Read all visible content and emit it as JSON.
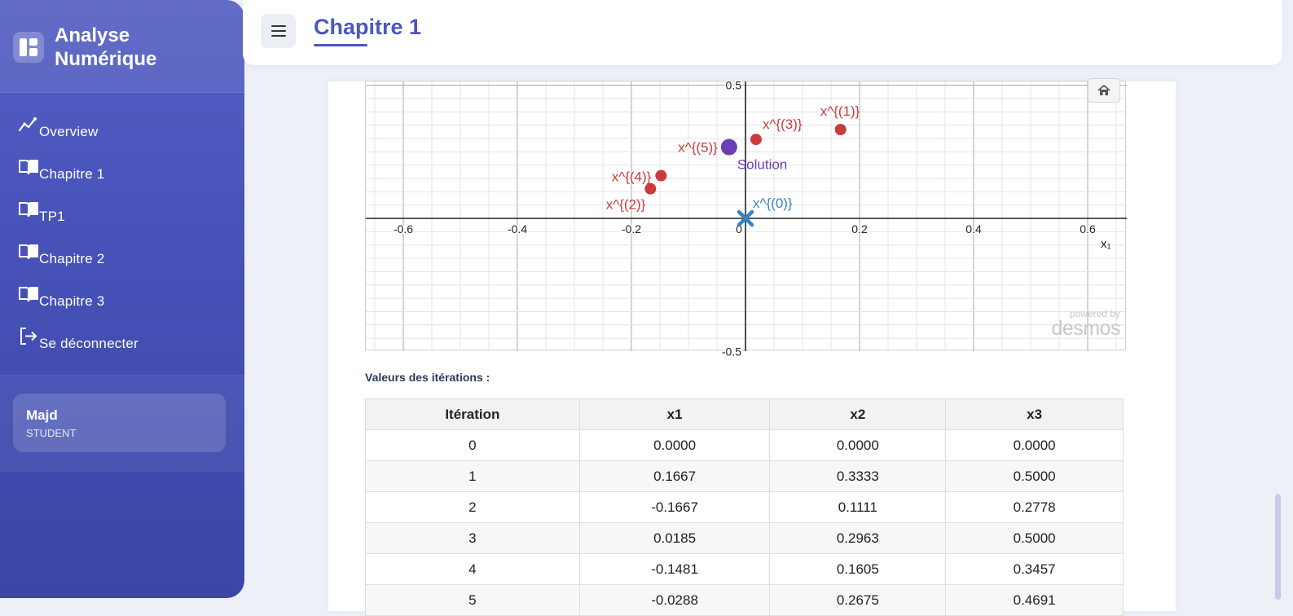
{
  "brand": {
    "title_line1": "Analyse",
    "title_line2": "Numérique"
  },
  "nav": {
    "items": [
      {
        "label": "Overview",
        "icon": "chart-line-icon"
      },
      {
        "label": "Chapitre 1",
        "icon": "book-open-icon"
      },
      {
        "label": "TP1",
        "icon": "book-open-icon"
      },
      {
        "label": "Chapitre 2",
        "icon": "book-open-icon"
      },
      {
        "label": "Chapitre 3",
        "icon": "book-open-icon"
      },
      {
        "label": "Se déconnecter",
        "icon": "logout-icon"
      }
    ]
  },
  "user": {
    "name": "Majd",
    "role": "STUDENT"
  },
  "header": {
    "title": "Chapitre 1"
  },
  "graph": {
    "x_ticks": [
      "-0.6",
      "-0.4",
      "-0.2",
      "0",
      "0.2",
      "0.4",
      "0.6"
    ],
    "y_ticks": [
      "0.5",
      "-0.5"
    ],
    "x_axis_label": "x₁",
    "watermark_top": "powered by",
    "watermark_brand": "desmos",
    "points": [
      {
        "label": "x^{(0)}",
        "x": 0.0,
        "y": 0.0,
        "kind": "start"
      },
      {
        "label": "x^{(1)}",
        "x": 0.1667,
        "y": 0.3333,
        "kind": "iter"
      },
      {
        "label": "x^{(2)}",
        "x": -0.1667,
        "y": 0.1111,
        "kind": "iter"
      },
      {
        "label": "x^{(3)}",
        "x": 0.0185,
        "y": 0.2963,
        "kind": "iter"
      },
      {
        "label": "x^{(4)}",
        "x": -0.1481,
        "y": 0.1605,
        "kind": "iter"
      },
      {
        "label": "x^{(5)}",
        "x": -0.0288,
        "y": 0.2675,
        "kind": "iter-hidden"
      },
      {
        "label": "Solution",
        "x": -0.0288,
        "y": 0.2675,
        "kind": "solution"
      }
    ],
    "colors": {
      "iter": "#cc3b3b",
      "solution": "#6a3fb5",
      "start": "#3b82c4"
    }
  },
  "iterations": {
    "label": "Valeurs des itérations :",
    "headers": [
      "Itération",
      "x1",
      "x2",
      "x3"
    ],
    "rows": [
      [
        "0",
        "0.0000",
        "0.0000",
        "0.0000"
      ],
      [
        "1",
        "0.1667",
        "0.3333",
        "0.5000"
      ],
      [
        "2",
        "-0.1667",
        "0.1111",
        "0.2778"
      ],
      [
        "3",
        "0.0185",
        "0.2963",
        "0.5000"
      ],
      [
        "4",
        "-0.1481",
        "0.1605",
        "0.3457"
      ],
      [
        "5",
        "-0.0288",
        "0.2675",
        "0.4691"
      ]
    ]
  },
  "theme": {
    "accent": "#4c57c0"
  }
}
